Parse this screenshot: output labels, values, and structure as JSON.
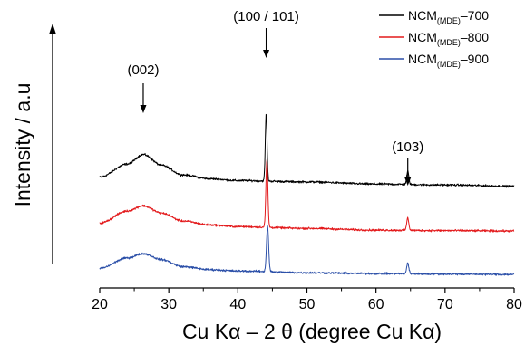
{
  "chart_data": {
    "type": "line",
    "xlabel": "Cu Kα – 2 θ (degree Cu Kα)",
    "ylabel": "Intensity / a.u",
    "xlim": [
      20,
      80
    ],
    "x_ticks": [
      20,
      30,
      40,
      50,
      60,
      70,
      80
    ],
    "y_ticks": [],
    "grid": false,
    "legend_position": "top-right",
    "annotations": [
      {
        "label": "(002)",
        "x": 26.3
      },
      {
        "label": "(100 / 101)",
        "x": 44.1
      },
      {
        "label": "(103)",
        "x": 64.6
      }
    ],
    "series": [
      {
        "name": "NCM(MDE)–700",
        "name_main": "NCM",
        "name_sub": "(MDE)",
        "name_suffix": "–700",
        "color": "#000000",
        "offset": 2.0,
        "noise": 0.035,
        "baseline": [
          [
            20,
            0.28
          ],
          [
            24,
            0.58
          ],
          [
            26.3,
            0.8
          ],
          [
            29,
            0.55
          ],
          [
            32,
            0.33
          ],
          [
            36,
            0.24
          ],
          [
            40,
            0.2
          ],
          [
            50,
            0.17
          ],
          [
            60,
            0.12
          ],
          [
            70,
            0.1
          ],
          [
            80,
            0.07
          ]
        ],
        "peaks": [
          [
            44.1,
            1.55,
            0.18
          ],
          [
            64.6,
            0.3,
            0.22
          ]
        ]
      },
      {
        "name": "NCM(MDE)–800",
        "name_main": "NCM",
        "name_sub": "(MDE)",
        "name_suffix": "–800",
        "color": "#e31a1c",
        "offset": 1.0,
        "noise": 0.035,
        "baseline": [
          [
            20,
            0.22
          ],
          [
            24,
            0.5
          ],
          [
            26.3,
            0.62
          ],
          [
            29,
            0.45
          ],
          [
            32,
            0.27
          ],
          [
            36,
            0.18
          ],
          [
            40,
            0.14
          ],
          [
            50,
            0.1
          ],
          [
            60,
            0.06
          ],
          [
            70,
            0.05
          ],
          [
            80,
            0.04
          ]
        ],
        "peaks": [
          [
            44.2,
            1.55,
            0.2
          ],
          [
            64.6,
            0.28,
            0.22
          ]
        ]
      },
      {
        "name": "NCM(MDE)–900",
        "name_main": "NCM",
        "name_sub": "(MDE)",
        "name_suffix": "–900",
        "color": "#2b4fa8",
        "offset": 0.0,
        "noise": 0.035,
        "baseline": [
          [
            20,
            0.18
          ],
          [
            24,
            0.42
          ],
          [
            26.3,
            0.52
          ],
          [
            29,
            0.38
          ],
          [
            32,
            0.22
          ],
          [
            36,
            0.15
          ],
          [
            40,
            0.12
          ],
          [
            50,
            0.08
          ],
          [
            60,
            0.06
          ],
          [
            70,
            0.05
          ],
          [
            80,
            0.04
          ]
        ],
        "peaks": [
          [
            44.3,
            1.05,
            0.22
          ],
          [
            64.6,
            0.25,
            0.22
          ]
        ]
      }
    ]
  }
}
